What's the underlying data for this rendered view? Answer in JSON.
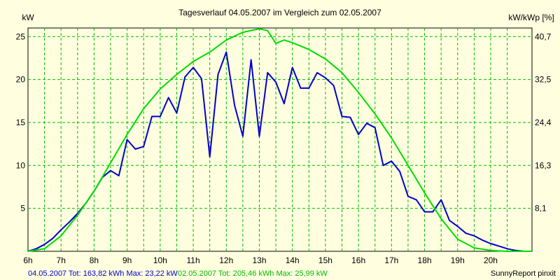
{
  "chart_data": {
    "type": "line",
    "title": "Tagesverlauf 04.05.2007 im Vergleich zum 02.05.2007",
    "ylabel_left": "kW",
    "ylabel_right": "kW/kWp [%]",
    "x_ticks": [
      "6h",
      "7h",
      "8h",
      "9h",
      "10h",
      "11h",
      "12h",
      "13h",
      "14h",
      "15h",
      "16h",
      "17h",
      "18h",
      "19h",
      "20h"
    ],
    "xlim": [
      6,
      21.25
    ],
    "ylim": [
      0,
      26
    ],
    "y_ticks_left": [
      "5",
      "10",
      "15",
      "20",
      "25"
    ],
    "y_ticks_left_values": [
      5,
      10,
      15,
      20,
      25
    ],
    "y_ticks_right": [
      "8,1",
      "16,3",
      "24,4",
      "32,5",
      "40,7"
    ],
    "grid": true,
    "colors": {
      "series1": "#0000cc",
      "series2": "#00dd00",
      "grid": "#00bb00",
      "background": "#ffffe0"
    },
    "series": [
      {
        "name": "04.05.2007",
        "color": "#0000cc",
        "points": [
          [
            6.0,
            0.0
          ],
          [
            6.25,
            0.3
          ],
          [
            6.5,
            0.8
          ],
          [
            6.75,
            1.5
          ],
          [
            7.0,
            2.5
          ],
          [
            7.25,
            3.4
          ],
          [
            7.5,
            4.4
          ],
          [
            7.75,
            5.6
          ],
          [
            8.0,
            7.0
          ],
          [
            8.25,
            8.6
          ],
          [
            8.5,
            9.4
          ],
          [
            8.75,
            8.8
          ],
          [
            9.0,
            13.0
          ],
          [
            9.25,
            11.9
          ],
          [
            9.5,
            12.2
          ],
          [
            9.75,
            15.7
          ],
          [
            10.0,
            15.7
          ],
          [
            10.25,
            17.9
          ],
          [
            10.5,
            16.1
          ],
          [
            10.75,
            20.3
          ],
          [
            11.0,
            21.4
          ],
          [
            11.25,
            20.1
          ],
          [
            11.5,
            11.0
          ],
          [
            11.75,
            20.6
          ],
          [
            12.0,
            23.2
          ],
          [
            12.25,
            17.0
          ],
          [
            12.5,
            13.4
          ],
          [
            12.75,
            22.3
          ],
          [
            13.0,
            13.4
          ],
          [
            13.25,
            20.8
          ],
          [
            13.5,
            19.7
          ],
          [
            13.75,
            17.2
          ],
          [
            14.0,
            21.4
          ],
          [
            14.25,
            19.0
          ],
          [
            14.5,
            19.0
          ],
          [
            14.75,
            20.8
          ],
          [
            15.0,
            20.2
          ],
          [
            15.25,
            19.3
          ],
          [
            15.5,
            15.7
          ],
          [
            15.75,
            15.6
          ],
          [
            16.0,
            13.6
          ],
          [
            16.25,
            14.9
          ],
          [
            16.5,
            14.4
          ],
          [
            16.75,
            10.0
          ],
          [
            17.0,
            10.5
          ],
          [
            17.25,
            9.3
          ],
          [
            17.5,
            6.4
          ],
          [
            17.75,
            6.0
          ],
          [
            18.0,
            4.6
          ],
          [
            18.25,
            4.6
          ],
          [
            18.5,
            6.0
          ],
          [
            18.75,
            3.6
          ],
          [
            19.0,
            2.9
          ],
          [
            19.25,
            2.1
          ],
          [
            19.5,
            1.8
          ],
          [
            19.75,
            1.3
          ],
          [
            20.0,
            0.9
          ],
          [
            20.25,
            0.6
          ],
          [
            20.5,
            0.3
          ],
          [
            20.75,
            0.1
          ],
          [
            21.0,
            0.0
          ],
          [
            21.25,
            0.0
          ]
        ]
      },
      {
        "name": "02.05.2007",
        "color": "#00dd00",
        "points": [
          [
            6.0,
            0.0
          ],
          [
            6.5,
            0.3
          ],
          [
            7.0,
            1.8
          ],
          [
            7.5,
            4.2
          ],
          [
            8.0,
            7.0
          ],
          [
            8.5,
            10.3
          ],
          [
            9.0,
            13.6
          ],
          [
            9.5,
            16.6
          ],
          [
            10.0,
            18.9
          ],
          [
            10.5,
            20.6
          ],
          [
            11.0,
            22.1
          ],
          [
            11.5,
            23.2
          ],
          [
            12.0,
            24.6
          ],
          [
            12.5,
            25.5
          ],
          [
            13.0,
            25.9
          ],
          [
            13.25,
            25.7
          ],
          [
            13.5,
            24.2
          ],
          [
            13.75,
            24.6
          ],
          [
            14.0,
            24.3
          ],
          [
            14.5,
            23.5
          ],
          [
            15.0,
            22.4
          ],
          [
            15.5,
            20.8
          ],
          [
            16.0,
            18.5
          ],
          [
            16.5,
            16.0
          ],
          [
            17.0,
            13.2
          ],
          [
            17.5,
            10.0
          ],
          [
            18.0,
            6.8
          ],
          [
            18.5,
            3.8
          ],
          [
            19.0,
            1.4
          ],
          [
            19.5,
            0.4
          ],
          [
            20.0,
            0.1
          ],
          [
            20.5,
            0.0
          ],
          [
            21.0,
            0.0
          ],
          [
            21.25,
            0.0
          ]
        ]
      }
    ]
  },
  "footer": {
    "left_blue": "04.05.2007 Tot: 163,82 kWh Max: 23,22 kW",
    "left_green": "02.05.2007 Tot: 205,46 kWh Max: 25,99 kW",
    "right": "SunnyReport pinxit"
  }
}
